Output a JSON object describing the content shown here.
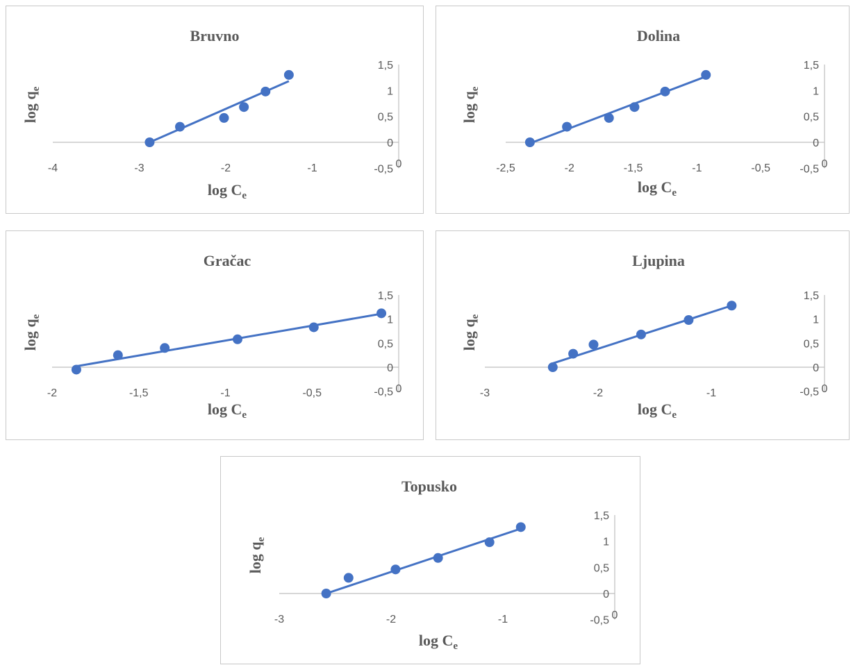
{
  "chart_data": [
    {
      "type": "scatter",
      "title": "Bruvno",
      "xlabel": "log C",
      "xlabel_sub": "e",
      "ylabel": "log q",
      "ylabel_sub": "e",
      "xlim": [
        -4,
        0
      ],
      "ylim": [
        -0.5,
        1.5
      ],
      "xticks": [
        -4,
        -3,
        -2,
        -1,
        0
      ],
      "xtick_labels": [
        "-4",
        "-3",
        "-2",
        "-1",
        "0"
      ],
      "yticks": [
        1.5,
        1,
        0.5,
        0,
        -0.5
      ],
      "ytick_labels": [
        "1,5",
        "1",
        "0,5",
        "0",
        "-0,5"
      ],
      "points": [
        [
          -2.88,
          0.0
        ],
        [
          -2.53,
          0.3
        ],
        [
          -2.02,
          0.47
        ],
        [
          -1.79,
          0.68
        ],
        [
          -1.54,
          0.98
        ],
        [
          -1.27,
          1.3
        ]
      ],
      "trendline": [
        [
          -2.88,
          0.0
        ],
        [
          -1.27,
          1.18
        ]
      ]
    },
    {
      "type": "scatter",
      "title": "Dolina",
      "xlabel": "log C",
      "xlabel_sub": "e",
      "ylabel": "log q",
      "ylabel_sub": "e",
      "xlim": [
        -2.5,
        0
      ],
      "ylim": [
        -0.5,
        1.5
      ],
      "xticks": [
        -2.5,
        -2,
        -1.5,
        -1,
        -0.5,
        0
      ],
      "xtick_labels": [
        "-2,5",
        "-2",
        "-1,5",
        "-1",
        "-0,5",
        "0"
      ],
      "yticks": [
        1.5,
        1,
        0.5,
        0,
        -0.5
      ],
      "ytick_labels": [
        "1,5",
        "1",
        "0,5",
        "0",
        "-0,5"
      ],
      "points": [
        [
          -2.31,
          0.0
        ],
        [
          -2.02,
          0.3
        ],
        [
          -1.69,
          0.47
        ],
        [
          -1.49,
          0.68
        ],
        [
          -1.25,
          0.98
        ],
        [
          -0.93,
          1.3
        ]
      ],
      "trendline": [
        [
          -2.31,
          -0.02
        ],
        [
          -0.93,
          1.27
        ]
      ]
    },
    {
      "type": "scatter",
      "title": "Gračac",
      "xlabel": "log C",
      "xlabel_sub": "e",
      "ylabel": "log q",
      "ylabel_sub": "e",
      "xlim": [
        -2,
        0
      ],
      "ylim": [
        -0.5,
        1.5
      ],
      "xticks": [
        -2,
        -1.5,
        -1,
        -0.5,
        0
      ],
      "xtick_labels": [
        "-2",
        "-1,5",
        "-1",
        "-0,5",
        "0"
      ],
      "yticks": [
        1.5,
        1,
        0.5,
        0,
        -0.5
      ],
      "ytick_labels": [
        "1,5",
        "1",
        "0,5",
        "0",
        "-0,5"
      ],
      "points": [
        [
          -1.86,
          -0.05
        ],
        [
          -1.62,
          0.25
        ],
        [
          -1.35,
          0.4
        ],
        [
          -0.93,
          0.58
        ],
        [
          -0.49,
          0.83
        ],
        [
          -0.1,
          1.12
        ]
      ],
      "trendline": [
        [
          -1.86,
          0.02
        ],
        [
          -0.1,
          1.11
        ]
      ]
    },
    {
      "type": "scatter",
      "title": "Ljupina",
      "xlabel": "log C",
      "xlabel_sub": "e",
      "ylabel": "log q",
      "ylabel_sub": "e",
      "xlim": [
        -3,
        0
      ],
      "ylim": [
        -0.5,
        1.5
      ],
      "xticks": [
        -3,
        -2,
        -1,
        0
      ],
      "xtick_labels": [
        "-3",
        "-2",
        "-1",
        "0"
      ],
      "yticks": [
        1.5,
        1,
        0.5,
        0,
        -0.5
      ],
      "ytick_labels": [
        "1,5",
        "1",
        "0,5",
        "0",
        "-0,5"
      ],
      "points": [
        [
          -2.4,
          0.0
        ],
        [
          -2.22,
          0.28
        ],
        [
          -2.04,
          0.47
        ],
        [
          -1.62,
          0.68
        ],
        [
          -1.2,
          0.98
        ],
        [
          -0.82,
          1.28
        ]
      ],
      "trendline": [
        [
          -2.4,
          0.08
        ],
        [
          -0.82,
          1.28
        ]
      ]
    },
    {
      "type": "scatter",
      "title": "Topusko",
      "xlabel": "log C",
      "xlabel_sub": "e",
      "ylabel": "log q",
      "ylabel_sub": "e",
      "xlim": [
        -3,
        0
      ],
      "ylim": [
        -0.5,
        1.5
      ],
      "xticks": [
        -3,
        -2,
        -1,
        0
      ],
      "xtick_labels": [
        "-3",
        "-2",
        "-1",
        "0"
      ],
      "yticks": [
        1.5,
        1,
        0.5,
        0,
        -0.5
      ],
      "ytick_labels": [
        "1,5",
        "1",
        "0,5",
        "0",
        "-0,5"
      ],
      "points": [
        [
          -2.58,
          0.0
        ],
        [
          -2.38,
          0.3
        ],
        [
          -1.96,
          0.46
        ],
        [
          -1.58,
          0.68
        ],
        [
          -1.12,
          0.98
        ],
        [
          -0.84,
          1.27
        ]
      ],
      "trendline": [
        [
          -2.58,
          0.0
        ],
        [
          -0.84,
          1.24
        ]
      ]
    }
  ],
  "colors": {
    "series": "#4472c4",
    "axis": "#bfbfbf",
    "text": "#595959",
    "border": "#c8c8c8"
  }
}
